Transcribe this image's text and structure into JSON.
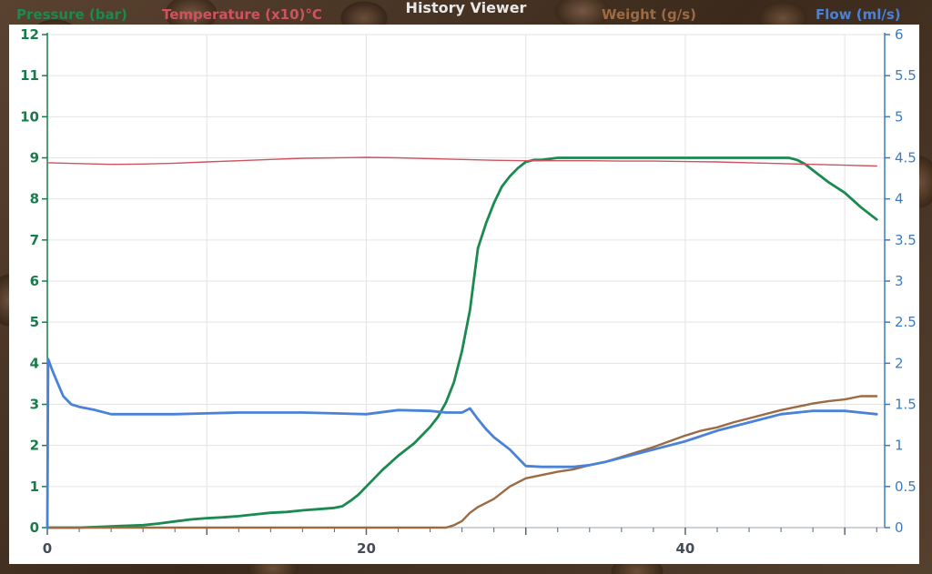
{
  "window_title": "History Viewer",
  "legend": {
    "pressure": "Pressure (bar)",
    "temperature": "Temperature (x10)°C",
    "weight": "Weight (g/s)",
    "flow": "Flow (ml/s)"
  },
  "colors": {
    "pressure": "#1a8a50",
    "temperature": "#d0525e",
    "weight": "#9c6a43",
    "flow": "#4a82d8",
    "right_axis": "#3d7bbf",
    "left_axis": "#1a7a4a"
  },
  "chart_data": {
    "type": "line",
    "title": "History Viewer",
    "xlim": [
      0,
      52.5
    ],
    "x_ticks": [
      0,
      20,
      40
    ],
    "y_left_lim": [
      0,
      12
    ],
    "y_left_ticks": [
      0,
      1,
      2,
      3,
      4,
      5,
      6,
      7,
      8,
      9,
      10,
      11,
      12
    ],
    "y_right_lim": [
      0,
      6
    ],
    "y_right_ticks": [
      "0",
      "0.5",
      "1",
      "1.5",
      "2",
      "2.5",
      "3",
      "3.5",
      "4",
      "4.5",
      "5",
      "5.5",
      "6"
    ],
    "grid": true,
    "series": [
      {
        "name": "Pressure (bar)",
        "axis": "left",
        "x": [
          0,
          2,
          4,
          6,
          7,
          8,
          9,
          10,
          11,
          12,
          13,
          14,
          15,
          16,
          17,
          18,
          18.5,
          19,
          19.5,
          20,
          21,
          22,
          23,
          24,
          24.5,
          25,
          25.5,
          26,
          26.5,
          27,
          27.5,
          28,
          28.5,
          29,
          29.5,
          30,
          30.5,
          31,
          32,
          33,
          34,
          35,
          36,
          37,
          38,
          39,
          40,
          41,
          42,
          43,
          44,
          45,
          46,
          46.5,
          47,
          47.5,
          48,
          49,
          50,
          51,
          52
        ],
        "y": [
          0,
          0,
          0.03,
          0.06,
          0.1,
          0.15,
          0.2,
          0.23,
          0.25,
          0.28,
          0.32,
          0.36,
          0.38,
          0.42,
          0.45,
          0.48,
          0.52,
          0.65,
          0.8,
          1.0,
          1.4,
          1.75,
          2.05,
          2.45,
          2.7,
          3.05,
          3.55,
          4.3,
          5.3,
          6.8,
          7.4,
          7.9,
          8.3,
          8.55,
          8.75,
          8.9,
          8.95,
          8.95,
          9.0,
          9.0,
          9.0,
          9.0,
          9.0,
          9.0,
          9.0,
          9.0,
          9.0,
          9.0,
          9.0,
          9.0,
          9.0,
          9.0,
          9.0,
          9.0,
          8.95,
          8.85,
          8.7,
          8.4,
          8.15,
          7.8,
          7.5
        ]
      },
      {
        "name": "Temperature (x10)°C",
        "axis": "left",
        "x": [
          0,
          2,
          4,
          6,
          8,
          10,
          12,
          14,
          16,
          18,
          20,
          22,
          24,
          26,
          28,
          30,
          32,
          34,
          36,
          38,
          40,
          42,
          44,
          46,
          48,
          50,
          52
        ],
        "y": [
          8.88,
          8.86,
          8.84,
          8.85,
          8.87,
          8.9,
          8.93,
          8.96,
          8.99,
          9.0,
          9.01,
          9.0,
          8.98,
          8.96,
          8.94,
          8.93,
          8.93,
          8.93,
          8.92,
          8.92,
          8.91,
          8.9,
          8.88,
          8.86,
          8.84,
          8.82,
          8.8
        ]
      },
      {
        "name": "Weight (g/s)",
        "axis": "right",
        "x": [
          0,
          10,
          20,
          25,
          25.5,
          26,
          26.5,
          27,
          28,
          29,
          30,
          31,
          32,
          33,
          34,
          35,
          36,
          37,
          38,
          39,
          40,
          41,
          42,
          43,
          44,
          45,
          46,
          47,
          48,
          49,
          50,
          51,
          52
        ],
        "y": [
          0,
          0,
          0,
          0,
          0.03,
          0.08,
          0.18,
          0.25,
          0.35,
          0.5,
          0.6,
          0.64,
          0.68,
          0.71,
          0.76,
          0.8,
          0.86,
          0.92,
          0.98,
          1.05,
          1.12,
          1.18,
          1.22,
          1.28,
          1.33,
          1.38,
          1.43,
          1.47,
          1.51,
          1.54,
          1.56,
          1.6,
          1.6
        ]
      },
      {
        "name": "Flow (ml/s)",
        "axis": "right",
        "x": [
          0,
          0.05,
          0.3,
          0.6,
          1,
          1.5,
          2,
          3,
          4,
          6,
          8,
          10,
          12,
          14,
          16,
          18,
          20,
          22,
          24,
          25,
          26,
          26.5,
          27,
          27.5,
          28,
          29,
          30,
          31,
          32,
          33,
          34,
          35,
          36,
          38,
          40,
          42,
          44,
          46,
          48,
          50,
          51,
          52
        ],
        "y": [
          0,
          2.05,
          1.92,
          1.78,
          1.6,
          1.5,
          1.47,
          1.43,
          1.38,
          1.38,
          1.38,
          1.39,
          1.4,
          1.4,
          1.4,
          1.39,
          1.38,
          1.43,
          1.42,
          1.4,
          1.4,
          1.45,
          1.32,
          1.2,
          1.1,
          0.95,
          0.75,
          0.74,
          0.74,
          0.74,
          0.76,
          0.8,
          0.85,
          0.95,
          1.05,
          1.18,
          1.28,
          1.38,
          1.42,
          1.42,
          1.4,
          1.38
        ]
      }
    ]
  }
}
